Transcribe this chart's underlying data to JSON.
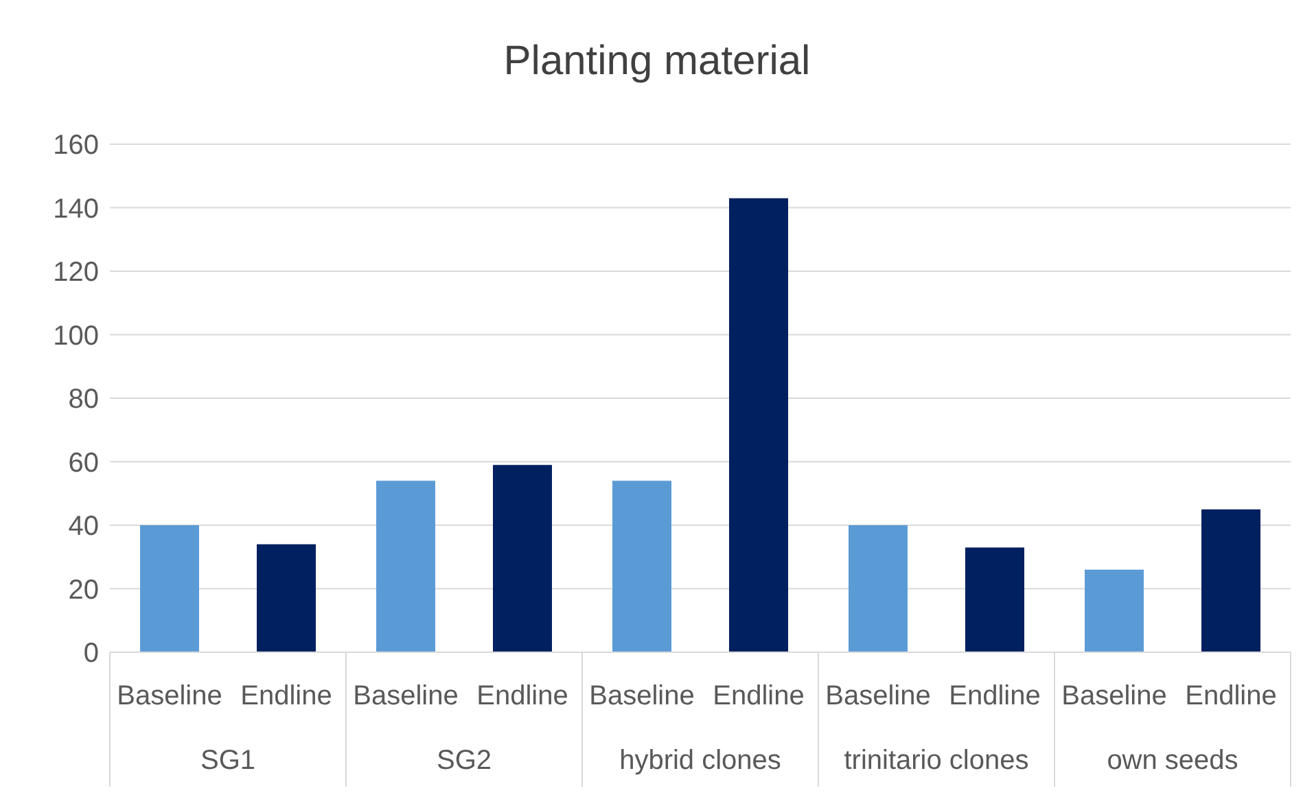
{
  "chart_data": {
    "type": "bar",
    "title": "Planting material",
    "categories": [
      "SG1",
      "SG2",
      "hybrid clones",
      "trinitario clones",
      "own seeds"
    ],
    "series": [
      {
        "name": "Baseline",
        "color": "#5b9bd5",
        "values": [
          40,
          54,
          54,
          40,
          26
        ]
      },
      {
        "name": "Endline",
        "color": "#002060",
        "values": [
          34,
          59,
          143,
          33,
          45
        ]
      }
    ],
    "ylim": [
      0,
      160
    ],
    "yticks": [
      0,
      20,
      40,
      60,
      80,
      100,
      120,
      140,
      160
    ],
    "grid": "y",
    "legend": false
  }
}
